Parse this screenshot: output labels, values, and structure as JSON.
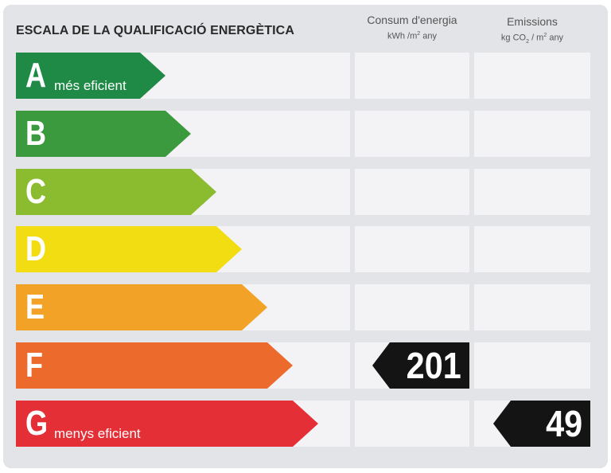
{
  "title": "ESCALA DE LA QUALIFICACIÓ ENERGÈTICA",
  "columns": {
    "consumption": {
      "title": "Consum d'energia",
      "unit_main": "kWh /m",
      "unit_sup": "2",
      "unit_tail": " any"
    },
    "emissions": {
      "title": "Emissions",
      "unit_main": "kg CO",
      "unit_sub": "2",
      "unit_mid": " / m",
      "unit_sup": "2",
      "unit_tail": " any"
    }
  },
  "ratings": [
    {
      "letter": "A",
      "label": "més eficient",
      "color": "#1e8a45"
    },
    {
      "letter": "B",
      "label": "",
      "color": "#3a9a3d"
    },
    {
      "letter": "C",
      "label": "",
      "color": "#8bbb2e"
    },
    {
      "letter": "D",
      "label": "",
      "color": "#f1dd12"
    },
    {
      "letter": "E",
      "label": "",
      "color": "#f2a227"
    },
    {
      "letter": "F",
      "label": "",
      "color": "#ec6a2b"
    },
    {
      "letter": "G",
      "label": "menys eficient",
      "color": "#e42f37"
    }
  ],
  "values": {
    "consumption": {
      "value": "201",
      "rating": "F"
    },
    "emissions": {
      "value": "49",
      "rating": "G"
    }
  }
}
